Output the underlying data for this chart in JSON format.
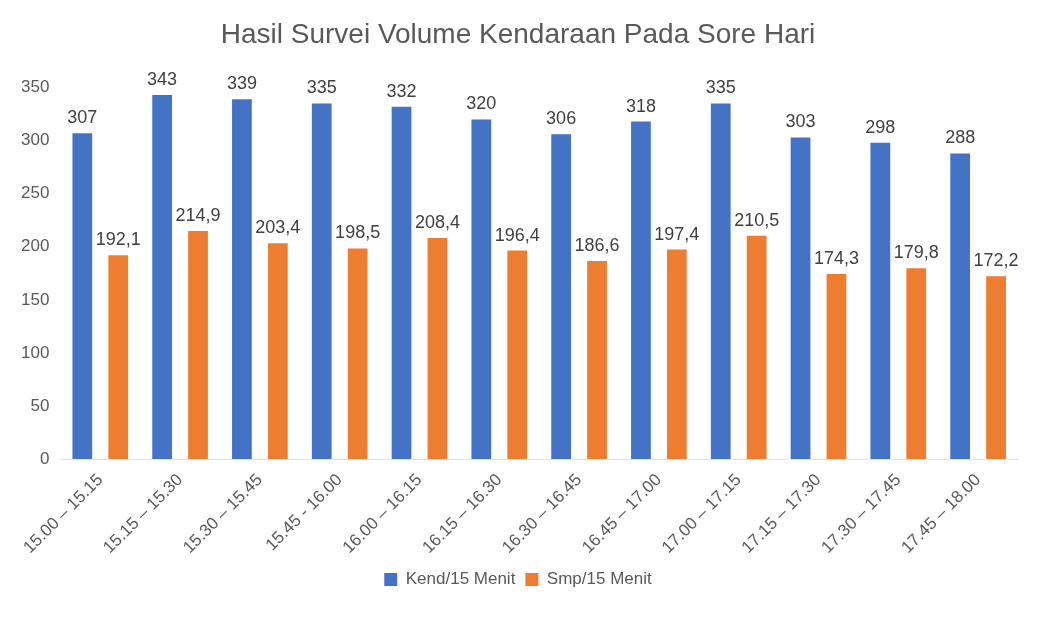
{
  "chart_data": {
    "type": "bar",
    "title": "Hasil Survei Volume Kendaraan Pada Sore Hari",
    "categories": [
      "15.00 – 15.15",
      "15.15 – 15.30",
      "15.30 – 15.45",
      "15.45 - 16.00",
      "16.00 – 16.15",
      "16.15 – 16.30",
      "16.30 – 16.45",
      "16.45 – 17.00",
      "17.00 – 17.15",
      "17.15 – 17.30",
      "17.30 – 17.45",
      "17.45 – 18.00"
    ],
    "series": [
      {
        "name": "Kend/15 Menit",
        "color": "#4472c4",
        "values": [
          307,
          343,
          339,
          335,
          332,
          320,
          306,
          318,
          335,
          303,
          298,
          288
        ],
        "value_labels": [
          "307",
          "343",
          "339",
          "335",
          "332",
          "320",
          "306",
          "318",
          "335",
          "303",
          "298",
          "288"
        ]
      },
      {
        "name": "Smp/15 Menit",
        "color": "#ed7d31",
        "values": [
          192.1,
          214.9,
          203.4,
          198.5,
          208.4,
          196.4,
          186.6,
          197.4,
          210.5,
          174.3,
          179.8,
          172.2
        ],
        "value_labels": [
          "192,1",
          "214,9",
          "203,4",
          "198,5",
          "208,4",
          "196,4",
          "186,6",
          "197,4",
          "210,5",
          "174,3",
          "179,8",
          "172,2"
        ]
      }
    ],
    "ylim": [
      0,
      350
    ],
    "yticks": [
      0,
      50,
      100,
      150,
      200,
      250,
      300,
      350
    ],
    "legend": "bottom"
  }
}
